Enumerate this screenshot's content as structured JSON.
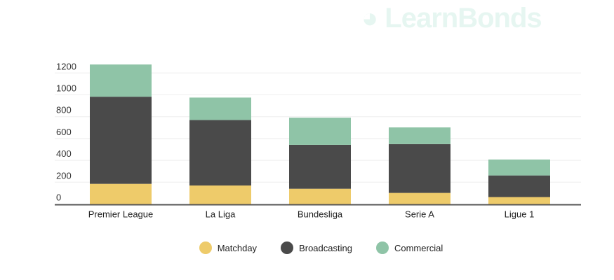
{
  "watermark": "LearnBonds",
  "colors": {
    "Matchday": "#eecb6a",
    "Broadcasting": "#4a4a4a",
    "Commercial": "#8fc4a7",
    "grid": "#eeeeee",
    "axis": "#555555"
  },
  "chart_data": {
    "type": "bar",
    "stacked": true,
    "title": "",
    "xlabel": "",
    "ylabel": "",
    "ylim": [
      0,
      1200
    ],
    "yticks": [
      0,
      200,
      400,
      600,
      800,
      1000,
      1200
    ],
    "grid": true,
    "legend_position": "bottom",
    "categories": [
      "Premier League",
      "La Liga",
      "Bundesliga",
      "Serie A",
      "Ligue 1"
    ],
    "series": [
      {
        "name": "Matchday",
        "values": [
          185,
          170,
          140,
          102,
          64
        ]
      },
      {
        "name": "Broadcasting",
        "values": [
          798,
          600,
          402,
          447,
          198
        ]
      },
      {
        "name": "Commercial",
        "values": [
          295,
          205,
          249,
          153,
          146
        ]
      }
    ]
  }
}
